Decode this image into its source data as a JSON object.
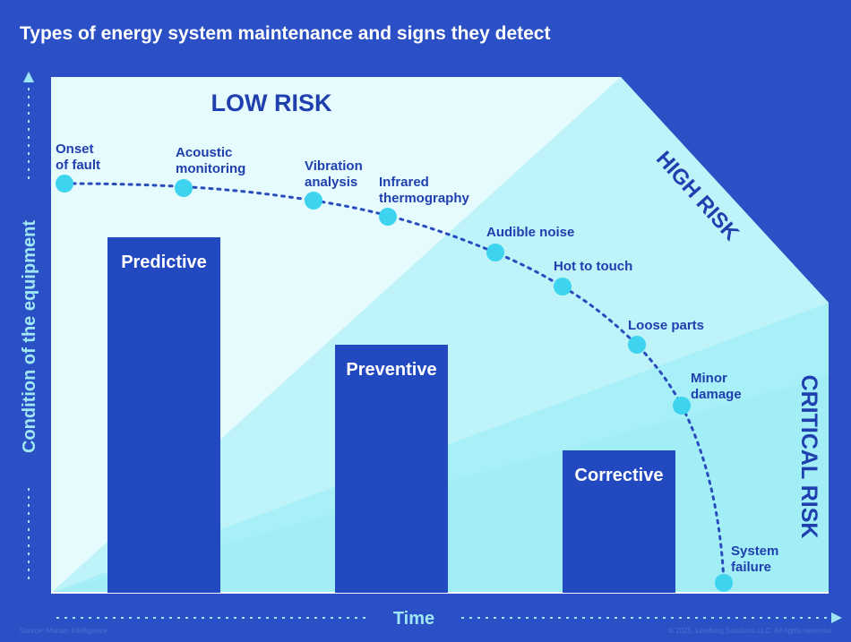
{
  "title": "Types of energy system maintenance and signs they detect",
  "axes": {
    "y_label": "Condition of the equipment",
    "x_label": "Time"
  },
  "zones": {
    "low": "LOW RISK",
    "high": "HIGH RISK",
    "critical": "CRITICAL RISK"
  },
  "bars": [
    {
      "label": "Predictive"
    },
    {
      "label": "Preventive"
    },
    {
      "label": "Corrective"
    }
  ],
  "signs": [
    {
      "lines": [
        "Onset",
        "of fault"
      ]
    },
    {
      "lines": [
        "Acoustic",
        "monitoring"
      ]
    },
    {
      "lines": [
        "Vibration",
        "analysis"
      ]
    },
    {
      "lines": [
        "Infrared",
        "thermography"
      ]
    },
    {
      "lines": [
        "Audible noise"
      ]
    },
    {
      "lines": [
        "Hot to touch"
      ]
    },
    {
      "lines": [
        "Loose parts"
      ]
    },
    {
      "lines": [
        "Minor",
        "damage"
      ]
    },
    {
      "lines": [
        "System",
        "failure"
      ]
    }
  ],
  "footer": {
    "source": "Source: Mordor Intelligence",
    "copyright": "© 2025, Lemberg Solutions LLC. All rights reserved"
  },
  "colors": {
    "background": "#2b4fc4",
    "low_zone": "#e6fbfd",
    "high_zone": "#bdf3f9",
    "critical_zone": "#a7f0f7",
    "bar": "#2249c0",
    "dot": "#3ed3ef",
    "text_dark": "#1f3fae"
  }
}
